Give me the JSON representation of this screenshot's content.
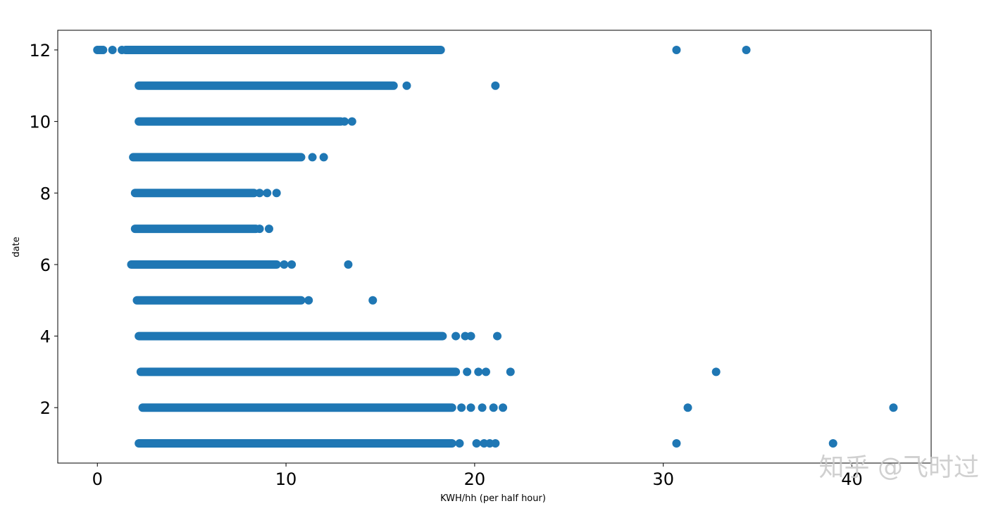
{
  "chart_data": {
    "type": "scatter",
    "title": "",
    "xlabel": "KWH/hh (per half hour)",
    "ylabel": "date",
    "xlim": [
      -2.1,
      44.2
    ],
    "ylim": [
      0.45,
      12.55
    ],
    "xticks": [
      0,
      10,
      20,
      30,
      40
    ],
    "yticks": [
      2,
      4,
      6,
      8,
      10,
      12
    ],
    "color": "#1f77b4",
    "grid": false,
    "rows": [
      {
        "date": 12,
        "dense_range": [
          1.5,
          18.2
        ],
        "points": [
          0.0,
          0.1,
          0.2,
          0.3,
          0.8,
          1.3,
          30.7,
          34.4
        ]
      },
      {
        "date": 11,
        "dense_range": [
          2.2,
          15.7
        ],
        "points": [
          16.4,
          21.1
        ]
      },
      {
        "date": 10,
        "dense_range": [
          2.2,
          12.9
        ],
        "points": [
          13.1,
          13.5
        ]
      },
      {
        "date": 9,
        "dense_range": [
          1.9,
          10.8
        ],
        "points": [
          11.4,
          12.0
        ]
      },
      {
        "date": 8,
        "dense_range": [
          2.0,
          8.3
        ],
        "points": [
          8.6,
          9.0,
          9.5
        ]
      },
      {
        "date": 7,
        "dense_range": [
          2.0,
          8.4
        ],
        "points": [
          8.6,
          9.1
        ]
      },
      {
        "date": 6,
        "dense_range": [
          1.8,
          9.5
        ],
        "points": [
          9.9,
          10.3,
          13.3
        ]
      },
      {
        "date": 5,
        "dense_range": [
          2.1,
          10.8
        ],
        "points": [
          11.2,
          14.6
        ]
      },
      {
        "date": 4,
        "dense_range": [
          2.2,
          18.3
        ],
        "points": [
          19.0,
          19.5,
          19.8,
          21.2
        ]
      },
      {
        "date": 3,
        "dense_range": [
          2.3,
          19.0
        ],
        "points": [
          19.6,
          20.2,
          20.6,
          21.9,
          32.8
        ]
      },
      {
        "date": 2,
        "dense_range": [
          2.4,
          18.8
        ],
        "points": [
          19.3,
          19.8,
          20.4,
          21.0,
          21.5,
          31.3,
          42.2
        ]
      },
      {
        "date": 1,
        "dense_range": [
          2.2,
          18.8
        ],
        "points": [
          19.2,
          20.1,
          20.5,
          20.8,
          21.1,
          30.7,
          39.0
        ]
      }
    ]
  },
  "watermark": "知乎 @飞时过"
}
